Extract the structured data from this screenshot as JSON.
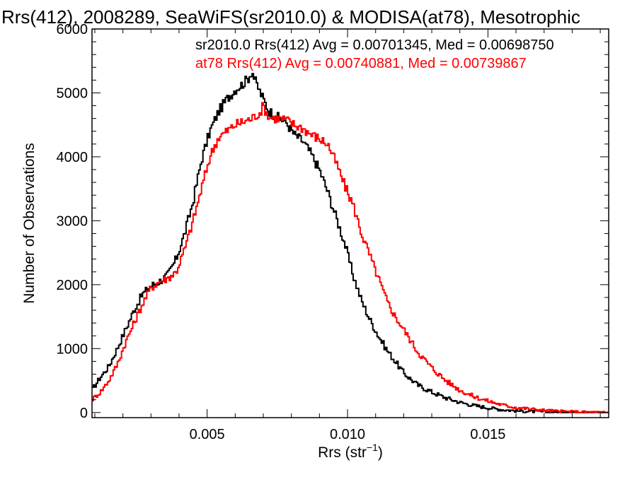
{
  "chart_data": {
    "type": "line",
    "step": true,
    "title": "Rrs(412), 2008289, SeaWiFS(sr2010.0) & MODISA(at78), Mesotrophic",
    "xlabel_base": "Rrs (str",
    "xlabel_sup": "−1",
    "xlabel_close": ")",
    "ylabel": "Number of Observations",
    "xlim": [
      0.0009,
      0.0193
    ],
    "ylim": [
      -80,
      6000
    ],
    "xticks": [
      0.005,
      0.01,
      0.015
    ],
    "xtick_labels": [
      "0.005",
      "0.010",
      "0.015"
    ],
    "yticks": [
      0,
      1000,
      2000,
      3000,
      4000,
      5000,
      6000
    ],
    "ytick_labels": [
      "0",
      "1000",
      "2000",
      "3000",
      "4000",
      "5000",
      "6000"
    ],
    "grid": false,
    "legend_position": "top-right",
    "series": [
      {
        "name": "sr2010.0 Rrs(412) Avg = 0.00701345, Med = 0.00698750",
        "color": "#000000",
        "x": [
          0.0009,
          0.0012,
          0.0015,
          0.0018,
          0.0021,
          0.0024,
          0.0027,
          0.003,
          0.0033,
          0.0036,
          0.0039,
          0.0042,
          0.0045,
          0.0048,
          0.0051,
          0.0054,
          0.0057,
          0.006,
          0.0063,
          0.0065,
          0.0066,
          0.0067,
          0.0069,
          0.0072,
          0.0075,
          0.0078,
          0.0081,
          0.0084,
          0.0087,
          0.009,
          0.0093,
          0.0096,
          0.0099,
          0.0102,
          0.0105,
          0.0108,
          0.0111,
          0.0114,
          0.0117,
          0.012,
          0.0125,
          0.013,
          0.0135,
          0.014,
          0.0145,
          0.015,
          0.0155,
          0.016,
          0.0165,
          0.017,
          0.0175,
          0.018,
          0.0185,
          0.019,
          0.0193
        ],
        "y": [
          350,
          550,
          720,
          1000,
          1300,
          1600,
          1850,
          1980,
          2050,
          2150,
          2400,
          2800,
          3300,
          3950,
          4400,
          4700,
          4900,
          5050,
          5150,
          5250,
          5350,
          5200,
          5000,
          4720,
          4620,
          4550,
          4350,
          4250,
          4050,
          3800,
          3450,
          3050,
          2650,
          2150,
          1750,
          1450,
          1200,
          980,
          800,
          620,
          430,
          320,
          230,
          160,
          110,
          75,
          45,
          28,
          18,
          10,
          6,
          4,
          2,
          1,
          0
        ]
      },
      {
        "name": "at78 Rrs(412) Avg = 0.00740881, Med = 0.00739867",
        "color": "#ff0000",
        "x": [
          0.0009,
          0.0012,
          0.0015,
          0.0018,
          0.0021,
          0.0024,
          0.0027,
          0.003,
          0.0033,
          0.0036,
          0.0039,
          0.0042,
          0.0045,
          0.0048,
          0.0051,
          0.0054,
          0.0057,
          0.006,
          0.0063,
          0.0066,
          0.0069,
          0.007,
          0.0072,
          0.0075,
          0.0078,
          0.0081,
          0.0084,
          0.0087,
          0.009,
          0.0093,
          0.0096,
          0.0099,
          0.0102,
          0.0105,
          0.0108,
          0.0111,
          0.0114,
          0.0117,
          0.012,
          0.0125,
          0.013,
          0.0135,
          0.014,
          0.0145,
          0.015,
          0.0155,
          0.016,
          0.0165,
          0.017,
          0.0175,
          0.018,
          0.0185,
          0.019,
          0.0193
        ],
        "y": [
          200,
          320,
          500,
          750,
          1100,
          1400,
          1700,
          1950,
          2050,
          2100,
          2200,
          2550,
          3000,
          3500,
          4000,
          4300,
          4400,
          4500,
          4550,
          4600,
          4700,
          4800,
          4620,
          4600,
          4580,
          4500,
          4450,
          4350,
          4280,
          4200,
          3900,
          3550,
          3250,
          2800,
          2450,
          2100,
          1750,
          1500,
          1300,
          950,
          700,
          500,
          350,
          250,
          180,
          120,
          80,
          55,
          35,
          20,
          12,
          7,
          3,
          1
        ]
      }
    ]
  }
}
